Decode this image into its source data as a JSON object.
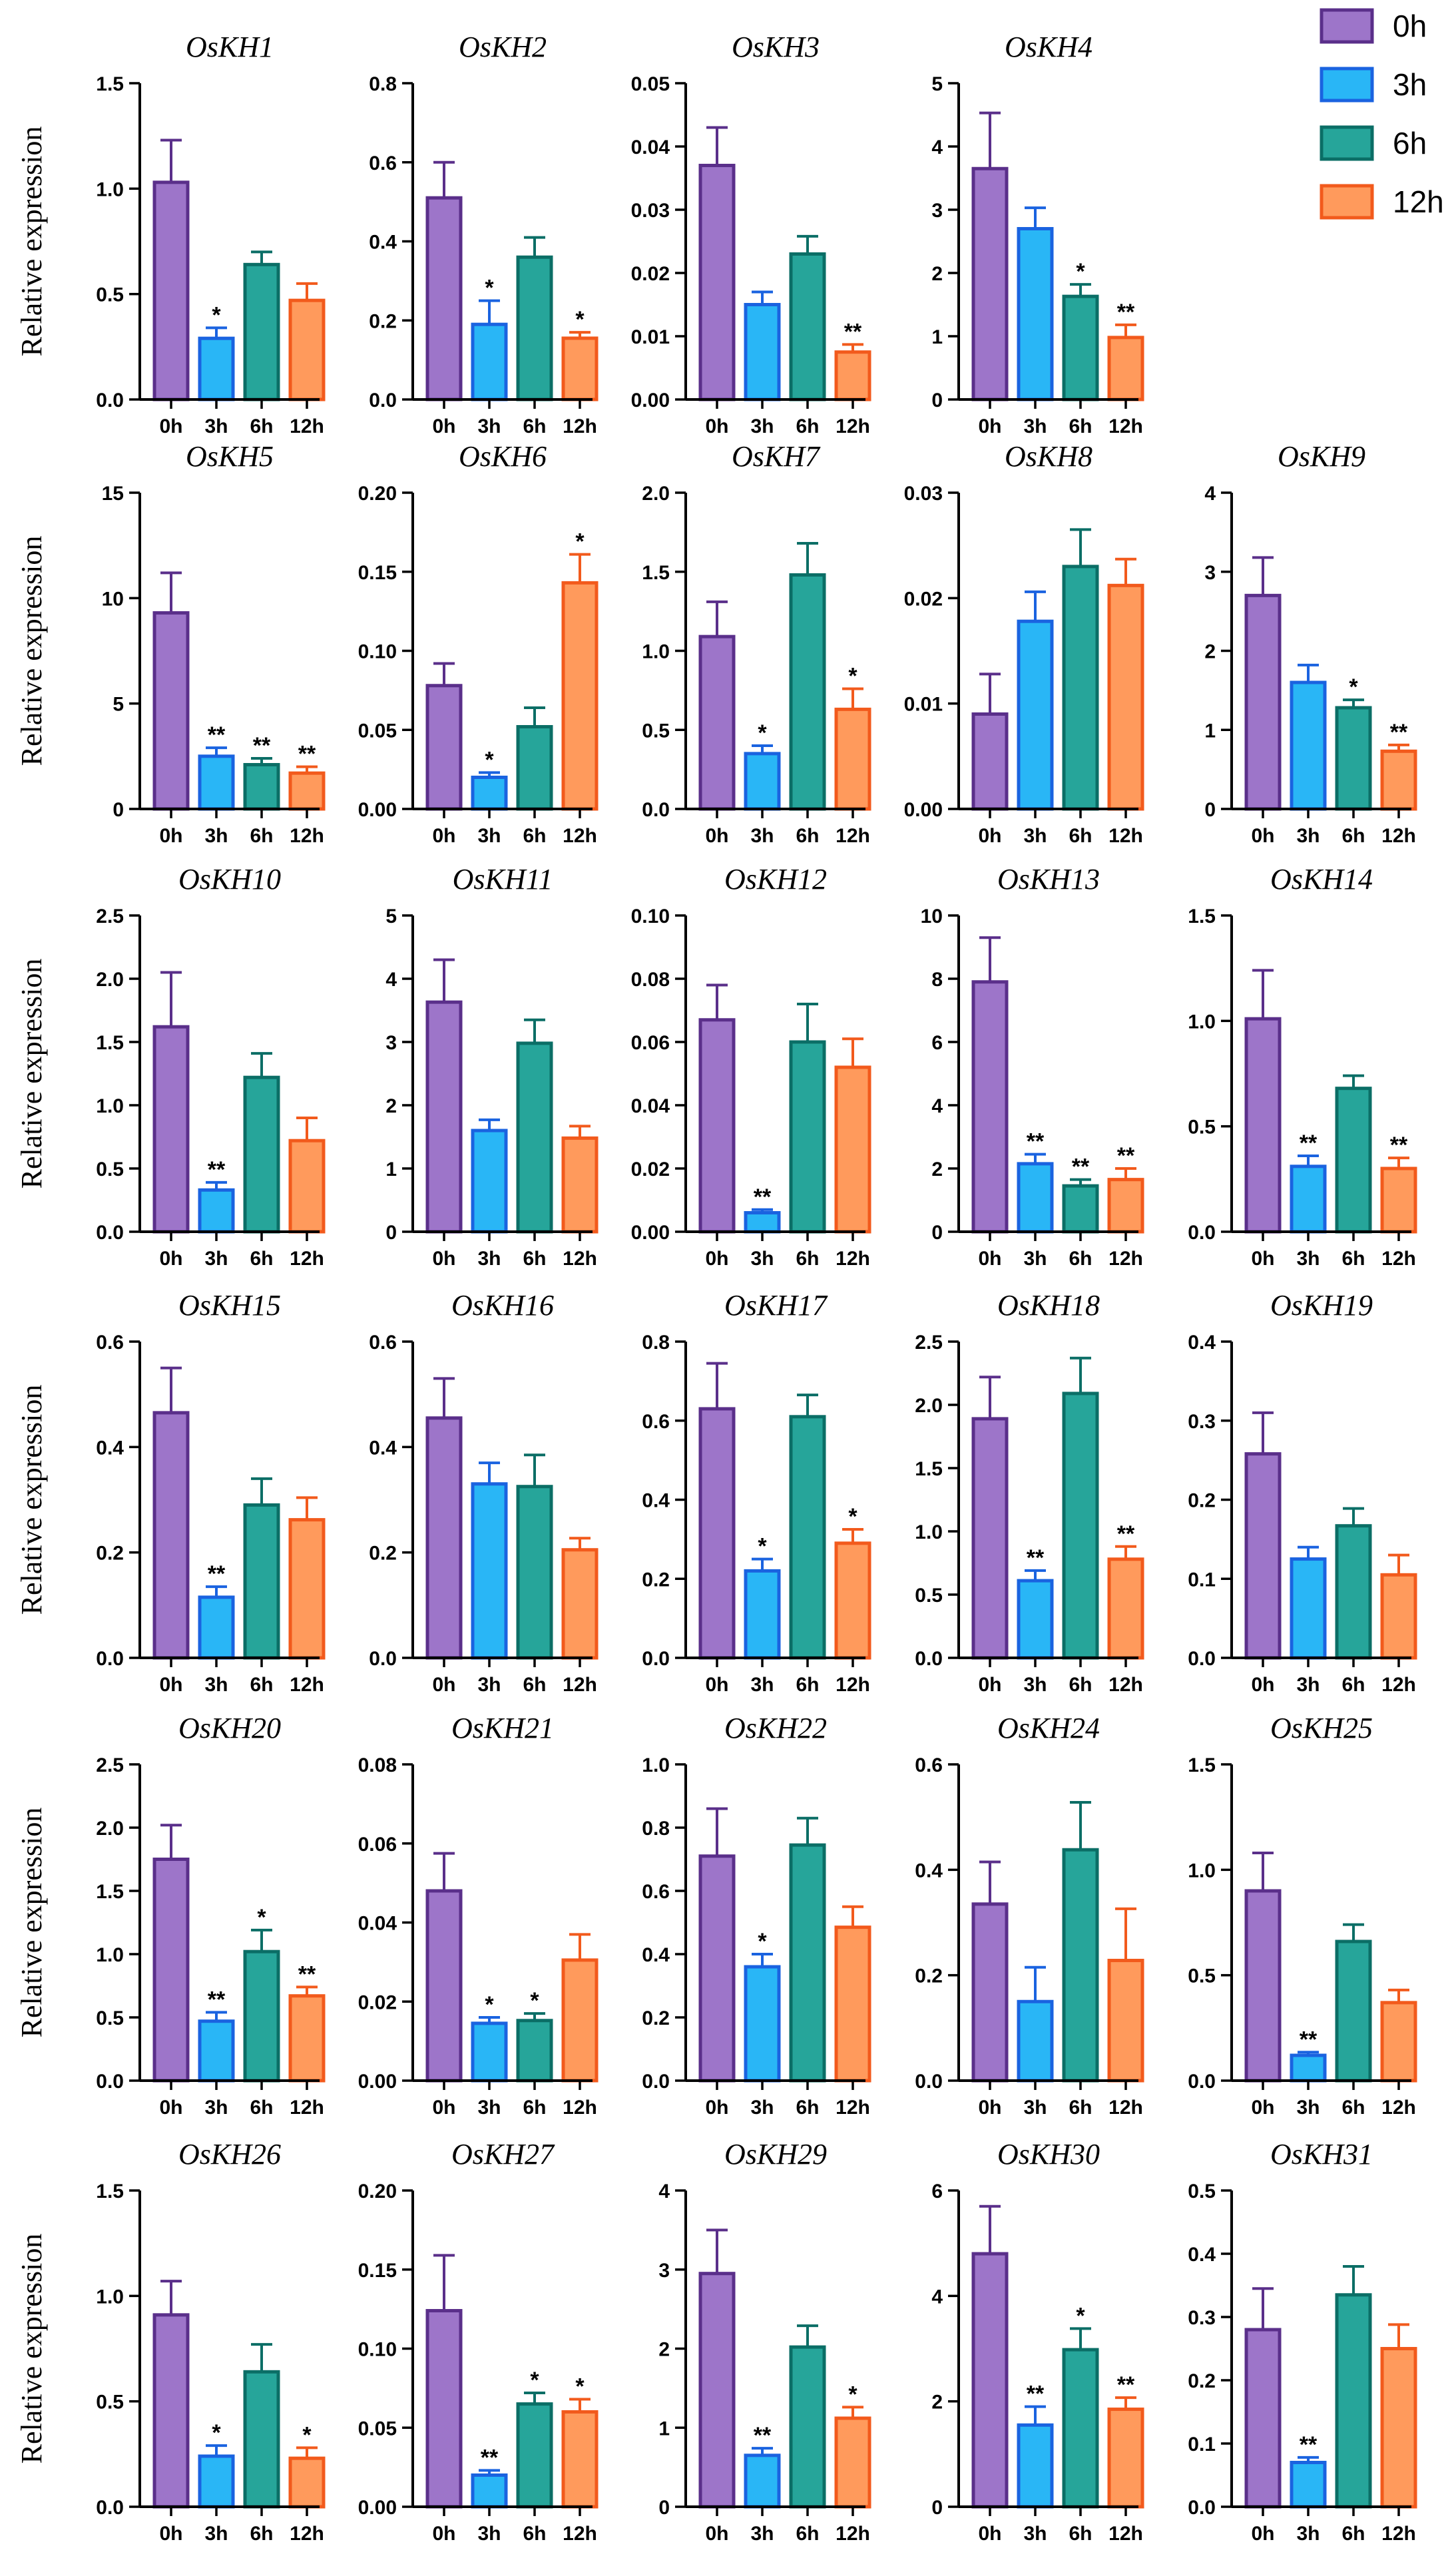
{
  "colors": {
    "0h": {
      "fill": "#9d75c9",
      "stroke": "#5a2f8a"
    },
    "3h": {
      "fill": "#29b6f6",
      "stroke": "#1a63e0"
    },
    "6h": {
      "fill": "#26a59a",
      "stroke": "#0b6e66"
    },
    "12h": {
      "fill": "#ff9a5c",
      "stroke": "#f25a1c"
    }
  },
  "legend": [
    "0h",
    "3h",
    "6h",
    "12h"
  ],
  "ylabel": "Relative expression",
  "chart_data": [
    {
      "type": "bar",
      "title": "OsKH1",
      "categories": [
        "0h",
        "3h",
        "6h",
        "12h"
      ],
      "values": [
        1.03,
        0.29,
        0.64,
        0.47
      ],
      "errors": [
        0.2,
        0.05,
        0.06,
        0.08
      ],
      "sig": [
        "",
        "*",
        "",
        ""
      ],
      "ylim": [
        0,
        1.5
      ],
      "yticks": [
        "0.0",
        "0.5",
        "1.0",
        "1.5"
      ],
      "ylabel": "Relative expression"
    },
    {
      "type": "bar",
      "title": "OsKH2",
      "categories": [
        "0h",
        "3h",
        "6h",
        "12h"
      ],
      "values": [
        0.51,
        0.19,
        0.36,
        0.155
      ],
      "errors": [
        0.09,
        0.06,
        0.05,
        0.015
      ],
      "sig": [
        "",
        "*",
        "",
        "*"
      ],
      "ylim": [
        0,
        0.8
      ],
      "yticks": [
        "0.0",
        "0.2",
        "0.4",
        "0.6",
        "0.8"
      ],
      "ylabel": ""
    },
    {
      "type": "bar",
      "title": "OsKH3",
      "categories": [
        "0h",
        "3h",
        "6h",
        "12h"
      ],
      "values": [
        0.037,
        0.015,
        0.023,
        0.0075
      ],
      "errors": [
        0.006,
        0.002,
        0.0028,
        0.0012
      ],
      "sig": [
        "",
        "",
        "",
        "**"
      ],
      "ylim": [
        0,
        0.05
      ],
      "yticks": [
        "0.00",
        "0.01",
        "0.02",
        "0.03",
        "0.04",
        "0.05"
      ],
      "ylabel": ""
    },
    {
      "type": "bar",
      "title": "OsKH4",
      "categories": [
        "0h",
        "3h",
        "6h",
        "12h"
      ],
      "values": [
        3.65,
        2.7,
        1.63,
        0.98
      ],
      "errors": [
        0.88,
        0.33,
        0.19,
        0.2
      ],
      "sig": [
        "",
        "",
        "*",
        "**"
      ],
      "ylim": [
        0,
        5
      ],
      "yticks": [
        "0",
        "1",
        "2",
        "3",
        "4",
        "5"
      ],
      "ylabel": ""
    },
    null,
    {
      "type": "bar",
      "title": "OsKH5",
      "categories": [
        "0h",
        "3h",
        "6h",
        "12h"
      ],
      "values": [
        9.3,
        2.5,
        2.1,
        1.7
      ],
      "errors": [
        1.9,
        0.4,
        0.3,
        0.3
      ],
      "sig": [
        "",
        "**",
        "**",
        "**"
      ],
      "ylim": [
        0,
        15
      ],
      "yticks": [
        "0",
        "5",
        "10",
        "15"
      ],
      "ylabel": "Relative expression"
    },
    {
      "type": "bar",
      "title": "OsKH6",
      "categories": [
        "0h",
        "3h",
        "6h",
        "12h"
      ],
      "values": [
        0.078,
        0.02,
        0.052,
        0.143
      ],
      "errors": [
        0.014,
        0.003,
        0.012,
        0.018
      ],
      "sig": [
        "",
        "*",
        "",
        "*"
      ],
      "ylim": [
        0,
        0.2
      ],
      "yticks": [
        "0.00",
        "0.05",
        "0.10",
        "0.15",
        "0.20"
      ],
      "ylabel": ""
    },
    {
      "type": "bar",
      "title": "OsKH7",
      "categories": [
        "0h",
        "3h",
        "6h",
        "12h"
      ],
      "values": [
        1.09,
        0.35,
        1.48,
        0.63
      ],
      "errors": [
        0.22,
        0.05,
        0.2,
        0.13
      ],
      "sig": [
        "",
        "*",
        "",
        "*"
      ],
      "ylim": [
        0,
        2.0
      ],
      "yticks": [
        "0.0",
        "0.5",
        "1.0",
        "1.5",
        "2.0"
      ],
      "ylabel": ""
    },
    {
      "type": "bar",
      "title": "OsKH8",
      "categories": [
        "0h",
        "3h",
        "6h",
        "12h"
      ],
      "values": [
        0.009,
        0.0178,
        0.023,
        0.0212
      ],
      "errors": [
        0.0038,
        0.0028,
        0.0035,
        0.0025
      ],
      "sig": [
        "",
        "",
        "",
        ""
      ],
      "ylim": [
        0,
        0.03
      ],
      "yticks": [
        "0.00",
        "0.01",
        "0.02",
        "0.03"
      ],
      "ylabel": ""
    },
    {
      "type": "bar",
      "title": "OsKH9",
      "categories": [
        "0h",
        "3h",
        "6h",
        "12h"
      ],
      "values": [
        2.7,
        1.6,
        1.28,
        0.73
      ],
      "errors": [
        0.48,
        0.22,
        0.1,
        0.08
      ],
      "sig": [
        "",
        "",
        "*",
        "**"
      ],
      "ylim": [
        0,
        4
      ],
      "yticks": [
        "0",
        "1",
        "2",
        "3",
        "4"
      ],
      "ylabel": ""
    },
    {
      "type": "bar",
      "title": "OsKH10",
      "categories": [
        "0h",
        "3h",
        "6h",
        "12h"
      ],
      "values": [
        1.62,
        0.33,
        1.22,
        0.72
      ],
      "errors": [
        0.43,
        0.06,
        0.19,
        0.18
      ],
      "sig": [
        "",
        "**",
        "",
        ""
      ],
      "ylim": [
        0,
        2.5
      ],
      "yticks": [
        "0.0",
        "0.5",
        "1.0",
        "1.5",
        "2.0",
        "2.5"
      ],
      "ylabel": "Relative expression"
    },
    {
      "type": "bar",
      "title": "OsKH11",
      "categories": [
        "0h",
        "3h",
        "6h",
        "12h"
      ],
      "values": [
        3.63,
        1.6,
        2.98,
        1.48
      ],
      "errors": [
        0.67,
        0.17,
        0.37,
        0.19
      ],
      "sig": [
        "",
        "",
        "",
        ""
      ],
      "ylim": [
        0,
        5
      ],
      "yticks": [
        "0",
        "1",
        "2",
        "3",
        "4",
        "5"
      ],
      "ylabel": ""
    },
    {
      "type": "bar",
      "title": "OsKH12",
      "categories": [
        "0h",
        "3h",
        "6h",
        "12h"
      ],
      "values": [
        0.067,
        0.006,
        0.06,
        0.052
      ],
      "errors": [
        0.011,
        0.001,
        0.012,
        0.009
      ],
      "sig": [
        "",
        "**",
        "",
        ""
      ],
      "ylim": [
        0,
        0.1
      ],
      "yticks": [
        "0.00",
        "0.02",
        "0.04",
        "0.06",
        "0.08",
        "0.10"
      ],
      "ylabel": ""
    },
    {
      "type": "bar",
      "title": "OsKH13",
      "categories": [
        "0h",
        "3h",
        "6h",
        "12h"
      ],
      "values": [
        7.9,
        2.15,
        1.45,
        1.65
      ],
      "errors": [
        1.4,
        0.3,
        0.2,
        0.35
      ],
      "sig": [
        "",
        "**",
        "**",
        "**"
      ],
      "ylim": [
        0,
        10
      ],
      "yticks": [
        "0",
        "2",
        "4",
        "6",
        "8",
        "10"
      ],
      "ylabel": ""
    },
    {
      "type": "bar",
      "title": "OsKH14",
      "categories": [
        "0h",
        "3h",
        "6h",
        "12h"
      ],
      "values": [
        1.01,
        0.31,
        0.68,
        0.3
      ],
      "errors": [
        0.23,
        0.05,
        0.06,
        0.05
      ],
      "sig": [
        "",
        "**",
        "",
        "**"
      ],
      "ylim": [
        0,
        1.5
      ],
      "yticks": [
        "0.0",
        "0.5",
        "1.0",
        "1.5"
      ],
      "ylabel": ""
    },
    {
      "type": "bar",
      "title": "OsKH15",
      "categories": [
        "0h",
        "3h",
        "6h",
        "12h"
      ],
      "values": [
        0.465,
        0.115,
        0.29,
        0.262
      ],
      "errors": [
        0.085,
        0.02,
        0.05,
        0.042
      ],
      "sig": [
        "",
        "**",
        "",
        ""
      ],
      "ylim": [
        0,
        0.6
      ],
      "yticks": [
        "0.0",
        "0.2",
        "0.4",
        "0.6"
      ],
      "ylabel": "Relative expression"
    },
    {
      "type": "bar",
      "title": "OsKH16",
      "categories": [
        "0h",
        "3h",
        "6h",
        "12h"
      ],
      "values": [
        0.455,
        0.33,
        0.325,
        0.205
      ],
      "errors": [
        0.075,
        0.04,
        0.06,
        0.022
      ],
      "sig": [
        "",
        "",
        "",
        ""
      ],
      "ylim": [
        0,
        0.6
      ],
      "yticks": [
        "0.0",
        "0.2",
        "0.4",
        "0.6"
      ],
      "ylabel": ""
    },
    {
      "type": "bar",
      "title": "OsKH17",
      "categories": [
        "0h",
        "3h",
        "6h",
        "12h"
      ],
      "values": [
        0.63,
        0.22,
        0.61,
        0.29
      ],
      "errors": [
        0.115,
        0.03,
        0.055,
        0.035
      ],
      "sig": [
        "",
        "*",
        "",
        "*"
      ],
      "ylim": [
        0,
        0.8
      ],
      "yticks": [
        "0.0",
        "0.2",
        "0.4",
        "0.6",
        "0.8"
      ],
      "ylabel": ""
    },
    {
      "type": "bar",
      "title": "OsKH18",
      "categories": [
        "0h",
        "3h",
        "6h",
        "12h"
      ],
      "values": [
        1.89,
        0.61,
        2.09,
        0.78
      ],
      "errors": [
        0.33,
        0.08,
        0.28,
        0.1
      ],
      "sig": [
        "",
        "**",
        "",
        "**"
      ],
      "ylim": [
        0,
        2.5
      ],
      "yticks": [
        "0.0",
        "0.5",
        "1.0",
        "1.5",
        "2.0",
        "2.5"
      ],
      "ylabel": ""
    },
    {
      "type": "bar",
      "title": "OsKH19",
      "categories": [
        "0h",
        "3h",
        "6h",
        "12h"
      ],
      "values": [
        0.258,
        0.125,
        0.167,
        0.105
      ],
      "errors": [
        0.052,
        0.015,
        0.022,
        0.025
      ],
      "sig": [
        "",
        "",
        "",
        ""
      ],
      "ylim": [
        0,
        0.4
      ],
      "yticks": [
        "0.0",
        "0.1",
        "0.2",
        "0.3",
        "0.4"
      ],
      "ylabel": ""
    },
    {
      "type": "bar",
      "title": "OsKH20",
      "categories": [
        "0h",
        "3h",
        "6h",
        "12h"
      ],
      "values": [
        1.75,
        0.47,
        1.02,
        0.67
      ],
      "errors": [
        0.27,
        0.07,
        0.17,
        0.07
      ],
      "sig": [
        "",
        "**",
        "*",
        "**"
      ],
      "ylim": [
        0,
        2.5
      ],
      "yticks": [
        "0.0",
        "0.5",
        "1.0",
        "1.5",
        "2.0",
        "2.5"
      ],
      "ylabel": "Relative expression"
    },
    {
      "type": "bar",
      "title": "OsKH21",
      "categories": [
        "0h",
        "3h",
        "6h",
        "12h"
      ],
      "values": [
        0.048,
        0.0145,
        0.0152,
        0.0305
      ],
      "errors": [
        0.0095,
        0.0015,
        0.0018,
        0.0065
      ],
      "sig": [
        "",
        "*",
        "*",
        ""
      ],
      "ylim": [
        0,
        0.08
      ],
      "yticks": [
        "0.00",
        "0.02",
        "0.04",
        "0.06",
        "0.08"
      ],
      "ylabel": ""
    },
    {
      "type": "bar",
      "title": "OsKH22",
      "categories": [
        "0h",
        "3h",
        "6h",
        "12h"
      ],
      "values": [
        0.71,
        0.36,
        0.745,
        0.485
      ],
      "errors": [
        0.15,
        0.04,
        0.085,
        0.065
      ],
      "sig": [
        "",
        "*",
        "",
        ""
      ],
      "ylim": [
        0,
        1.0
      ],
      "yticks": [
        "0.0",
        "0.2",
        "0.4",
        "0.6",
        "0.8",
        "1.0"
      ],
      "ylabel": ""
    },
    {
      "type": "bar",
      "title": "OsKH24",
      "categories": [
        "0h",
        "3h",
        "6h",
        "12h"
      ],
      "values": [
        0.335,
        0.15,
        0.438,
        0.228
      ],
      "errors": [
        0.08,
        0.065,
        0.09,
        0.098
      ],
      "sig": [
        "",
        "",
        "",
        ""
      ],
      "ylim": [
        0,
        0.6
      ],
      "yticks": [
        "0.0",
        "0.2",
        "0.4",
        "0.6"
      ],
      "ylabel": ""
    },
    {
      "type": "bar",
      "title": "OsKH25",
      "categories": [
        "0h",
        "3h",
        "6h",
        "12h"
      ],
      "values": [
        0.9,
        0.12,
        0.66,
        0.37
      ],
      "errors": [
        0.18,
        0.015,
        0.08,
        0.06
      ],
      "sig": [
        "",
        "**",
        "",
        ""
      ],
      "ylim": [
        0,
        1.5
      ],
      "yticks": [
        "0.0",
        "0.5",
        "1.0",
        "1.5"
      ],
      "ylabel": ""
    },
    {
      "type": "bar",
      "title": "OsKH26",
      "categories": [
        "0h",
        "3h",
        "6h",
        "12h"
      ],
      "values": [
        0.91,
        0.24,
        0.64,
        0.23
      ],
      "errors": [
        0.16,
        0.05,
        0.13,
        0.05
      ],
      "sig": [
        "",
        "*",
        "",
        "*"
      ],
      "ylim": [
        0,
        1.5
      ],
      "yticks": [
        "0.0",
        "0.5",
        "1.0",
        "1.5"
      ],
      "ylabel": "Relative expression"
    },
    {
      "type": "bar",
      "title": "OsKH27",
      "categories": [
        "0h",
        "3h",
        "6h",
        "12h"
      ],
      "values": [
        0.124,
        0.02,
        0.065,
        0.06
      ],
      "errors": [
        0.035,
        0.003,
        0.007,
        0.008
      ],
      "sig": [
        "",
        "**",
        "*",
        "*"
      ],
      "ylim": [
        0,
        0.2
      ],
      "yticks": [
        "0.00",
        "0.05",
        "0.10",
        "0.15",
        "0.20"
      ],
      "ylabel": ""
    },
    {
      "type": "bar",
      "title": "OsKH29",
      "categories": [
        "0h",
        "3h",
        "6h",
        "12h"
      ],
      "values": [
        2.95,
        0.65,
        2.02,
        1.12
      ],
      "errors": [
        0.55,
        0.09,
        0.27,
        0.14
      ],
      "sig": [
        "",
        "**",
        "",
        "*"
      ],
      "ylim": [
        0,
        4
      ],
      "yticks": [
        "0",
        "1",
        "2",
        "3",
        "4"
      ],
      "ylabel": ""
    },
    {
      "type": "bar",
      "title": "OsKH30",
      "categories": [
        "0h",
        "3h",
        "6h",
        "12h"
      ],
      "values": [
        4.8,
        1.55,
        2.98,
        1.85
      ],
      "errors": [
        0.9,
        0.35,
        0.4,
        0.22
      ],
      "sig": [
        "",
        "**",
        "*",
        "**"
      ],
      "ylim": [
        0,
        6
      ],
      "yticks": [
        "0",
        "2",
        "4",
        "6"
      ],
      "ylabel": ""
    },
    {
      "type": "bar",
      "title": "OsKH31",
      "categories": [
        "0h",
        "3h",
        "6h",
        "12h"
      ],
      "values": [
        0.28,
        0.07,
        0.335,
        0.25
      ],
      "errors": [
        0.065,
        0.008,
        0.045,
        0.038
      ],
      "sig": [
        "",
        "**",
        "",
        ""
      ],
      "ylim": [
        0,
        0.5
      ],
      "yticks": [
        "0.0",
        "0.1",
        "0.2",
        "0.3",
        "0.4",
        "0.5"
      ],
      "ylabel": ""
    }
  ]
}
